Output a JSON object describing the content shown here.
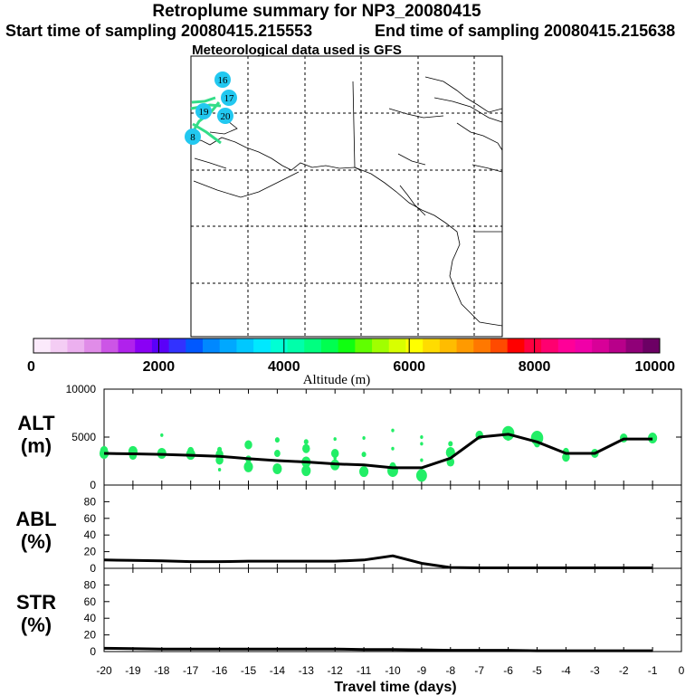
{
  "header": {
    "title": "Retroplume summary for NP3_20080415",
    "start_label": "Start time of sampling 20080415.215553",
    "end_label": "End time of sampling 20080415.215638",
    "met_label": "Meteorological data used is GFS"
  },
  "map": {
    "day_markers": [
      "16",
      "17",
      "19",
      "20",
      "8"
    ],
    "marker_color": "#22c8f0",
    "plume_color": "#33dd88"
  },
  "colorbar": {
    "label": "Altitude (m)",
    "tick_labels": [
      "0",
      "2000",
      "4000",
      "6000",
      "8000",
      "10000"
    ],
    "colors": [
      "#fbeafb",
      "#f4cdf4",
      "#ecb0ef",
      "#e08ce8",
      "#cc55e6",
      "#b022ec",
      "#8a00f5",
      "#5a00f8",
      "#3232ff",
      "#0058ff",
      "#0088ff",
      "#00a8ff",
      "#00c8ff",
      "#00e8ff",
      "#00ffd4",
      "#00ffaa",
      "#00ff80",
      "#00ff50",
      "#10ff10",
      "#60ff00",
      "#a0ff00",
      "#d8ff00",
      "#ffff00",
      "#ffdc00",
      "#ffbc00",
      "#ff9a00",
      "#ff7800",
      "#ff4a00",
      "#ff0000",
      "#ff0040",
      "#ff0070",
      "#ff0098",
      "#f000a8",
      "#d80098",
      "#b8008a",
      "#900078",
      "#6c0064"
    ]
  },
  "chart_data": [
    {
      "type": "line",
      "panel": "ALT",
      "ylabel": "ALT (m)",
      "ylim": [
        0,
        10000
      ],
      "yticks": [
        "10000",
        "5000",
        "0"
      ],
      "x": [
        -20,
        -19,
        -18,
        -17,
        -16,
        -15,
        -14,
        -13,
        -12,
        -11,
        -10,
        -9,
        -8,
        -7,
        -6,
        -5,
        -4,
        -3,
        -2,
        -1
      ],
      "values": [
        3300,
        3250,
        3200,
        3100,
        3000,
        2750,
        2550,
        2400,
        2200,
        2100,
        1800,
        1800,
        2800,
        5000,
        5300,
        4500,
        3300,
        3300,
        4800,
        4800
      ],
      "scatter_color": "#22ee66",
      "scatter": [
        [
          -20,
          3300,
          6
        ],
        [
          -20,
          3600,
          5
        ],
        [
          -19,
          3500,
          6
        ],
        [
          -19,
          3100,
          5
        ],
        [
          -18,
          3300,
          6
        ],
        [
          -18,
          5200,
          2
        ],
        [
          -17,
          3200,
          6
        ],
        [
          -17,
          3600,
          4
        ],
        [
          -16,
          3200,
          5
        ],
        [
          -16,
          2600,
          5
        ],
        [
          -16,
          3700,
          3
        ],
        [
          -16,
          1600,
          2
        ],
        [
          -15,
          4200,
          5
        ],
        [
          -15,
          1900,
          6
        ],
        [
          -15,
          2700,
          4
        ],
        [
          -14,
          1700,
          6
        ],
        [
          -14,
          3300,
          4
        ],
        [
          -14,
          4700,
          3
        ],
        [
          -13,
          1500,
          6
        ],
        [
          -13,
          2400,
          6
        ],
        [
          -13,
          3800,
          5
        ],
        [
          -13,
          4500,
          3
        ],
        [
          -12,
          2100,
          6
        ],
        [
          -12,
          3300,
          5
        ],
        [
          -12,
          4800,
          2
        ],
        [
          -12,
          2800,
          2
        ],
        [
          -11,
          1400,
          6
        ],
        [
          -11,
          3200,
          3
        ],
        [
          -11,
          4900,
          2
        ],
        [
          -10,
          1500,
          7
        ],
        [
          -10,
          2000,
          4
        ],
        [
          -10,
          5700,
          2
        ],
        [
          -10,
          3800,
          2
        ],
        [
          -9,
          1000,
          7
        ],
        [
          -9,
          2600,
          2
        ],
        [
          -9,
          4300,
          2
        ],
        [
          -9,
          5000,
          2
        ],
        [
          -8,
          2400,
          5
        ],
        [
          -8,
          3400,
          6
        ],
        [
          -8,
          4300,
          3
        ],
        [
          -7,
          5200,
          5
        ],
        [
          -6,
          5400,
          8
        ],
        [
          -6,
          4800,
          2
        ],
        [
          -5,
          4900,
          8
        ],
        [
          -5,
          4300,
          4
        ],
        [
          -4,
          2900,
          5
        ],
        [
          -4,
          3500,
          4
        ],
        [
          -3,
          3300,
          5
        ],
        [
          -2,
          4900,
          5
        ],
        [
          -1,
          4900,
          6
        ]
      ]
    },
    {
      "type": "line",
      "panel": "ABL",
      "ylabel": "ABL (%)",
      "ylim": [
        0,
        100
      ],
      "yticks": [
        "80",
        "60",
        "40",
        "20",
        "0"
      ],
      "x": [
        -20,
        -19,
        -18,
        -17,
        -16,
        -15,
        -14,
        -13,
        -12,
        -11,
        -10,
        -9,
        -8,
        -7,
        -6,
        -5,
        -4,
        -3,
        -2,
        -1
      ],
      "values": [
        10,
        9.5,
        9,
        8,
        8,
        8.5,
        8.5,
        8.5,
        8.5,
        10,
        15,
        6,
        1,
        0.5,
        0.5,
        0.5,
        0.5,
        0.5,
        0.5,
        0.5
      ]
    },
    {
      "type": "line",
      "panel": "STR",
      "ylabel": "STR (%)",
      "ylim": [
        0,
        100
      ],
      "yticks": [
        "80",
        "60",
        "40",
        "20",
        "0"
      ],
      "x": [
        -20,
        -19,
        -18,
        -17,
        -16,
        -15,
        -14,
        -13,
        -12,
        -11,
        -10,
        -9,
        -8,
        -7,
        -6,
        -5,
        -4,
        -3,
        -2,
        -1
      ],
      "values": [
        4,
        3.5,
        3,
        3,
        3,
        3,
        3,
        3,
        3,
        2.5,
        2.5,
        2,
        1.5,
        1.5,
        1.5,
        1,
        1,
        1,
        1,
        1
      ]
    }
  ],
  "xaxis": {
    "label": "Travel time (days)",
    "ticks": [
      "-20",
      "-19",
      "-18",
      "-17",
      "-16",
      "-15",
      "-14",
      "-13",
      "-12",
      "-11",
      "-10",
      "-9",
      "-8",
      "-7",
      "-6",
      "-5",
      "-4",
      "-3",
      "-2",
      "-1",
      "0"
    ]
  }
}
